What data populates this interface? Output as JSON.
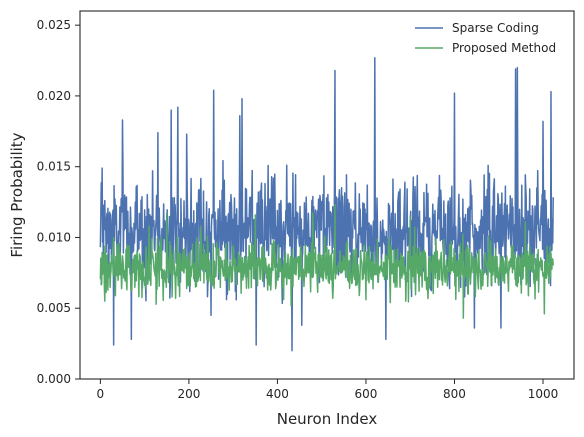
{
  "chart_data": {
    "type": "line",
    "title": "",
    "xlabel": "Neuron Index",
    "ylabel": "Firing Probability",
    "xlim": [
      -46,
      1070
    ],
    "ylim": [
      0,
      0.026
    ],
    "xticks": [
      0,
      200,
      400,
      600,
      800,
      1000
    ],
    "xtick_labels": [
      "0",
      "200",
      "400",
      "600",
      "800",
      "1000"
    ],
    "yticks": [
      0,
      0.005,
      0.01,
      0.015,
      0.02,
      0.025
    ],
    "ytick_labels": [
      "0.000",
      "0.005",
      "0.010",
      "0.015",
      "0.020",
      "0.025"
    ],
    "grid": false,
    "legend_position": "top-right",
    "n_points": 1024,
    "series": [
      {
        "name": "Sparse Coding",
        "color": "#4c72b0",
        "mean": 0.0105,
        "spread": 0.0018,
        "min_observed": 0.002,
        "max_observed": 0.0227,
        "notable_points": [
          {
            "x": 4,
            "y": 0.0149
          },
          {
            "x": 30,
            "y": 0.0024
          },
          {
            "x": 50,
            "y": 0.0183
          },
          {
            "x": 70,
            "y": 0.0028
          },
          {
            "x": 130,
            "y": 0.0174
          },
          {
            "x": 160,
            "y": 0.019
          },
          {
            "x": 175,
            "y": 0.0192
          },
          {
            "x": 195,
            "y": 0.0173
          },
          {
            "x": 250,
            "y": 0.0045
          },
          {
            "x": 256,
            "y": 0.0204
          },
          {
            "x": 315,
            "y": 0.0186
          },
          {
            "x": 320,
            "y": 0.0198
          },
          {
            "x": 352,
            "y": 0.0024
          },
          {
            "x": 433,
            "y": 0.002
          },
          {
            "x": 455,
            "y": 0.0038
          },
          {
            "x": 530,
            "y": 0.0218
          },
          {
            "x": 620,
            "y": 0.0227
          },
          {
            "x": 645,
            "y": 0.0028
          },
          {
            "x": 800,
            "y": 0.0202
          },
          {
            "x": 845,
            "y": 0.0036
          },
          {
            "x": 905,
            "y": 0.0036
          },
          {
            "x": 938,
            "y": 0.0219
          },
          {
            "x": 942,
            "y": 0.022
          },
          {
            "x": 1000,
            "y": 0.0182
          },
          {
            "x": 1018,
            "y": 0.0203
          }
        ]
      },
      {
        "name": "Proposed Method",
        "color": "#55a868",
        "mean": 0.0079,
        "spread": 0.0009,
        "min_observed": 0.0043,
        "max_observed": 0.0123,
        "notable_points": [
          {
            "x": 10,
            "y": 0.0055
          },
          {
            "x": 60,
            "y": 0.0063
          },
          {
            "x": 110,
            "y": 0.0108
          },
          {
            "x": 150,
            "y": 0.0117
          },
          {
            "x": 170,
            "y": 0.0057
          },
          {
            "x": 350,
            "y": 0.0116
          },
          {
            "x": 480,
            "y": 0.0117
          },
          {
            "x": 530,
            "y": 0.0123
          },
          {
            "x": 585,
            "y": 0.0059
          },
          {
            "x": 600,
            "y": 0.0056
          },
          {
            "x": 700,
            "y": 0.0115
          },
          {
            "x": 720,
            "y": 0.0062
          },
          {
            "x": 820,
            "y": 0.0043
          },
          {
            "x": 960,
            "y": 0.0111
          },
          {
            "x": 1003,
            "y": 0.0046
          }
        ]
      }
    ]
  }
}
